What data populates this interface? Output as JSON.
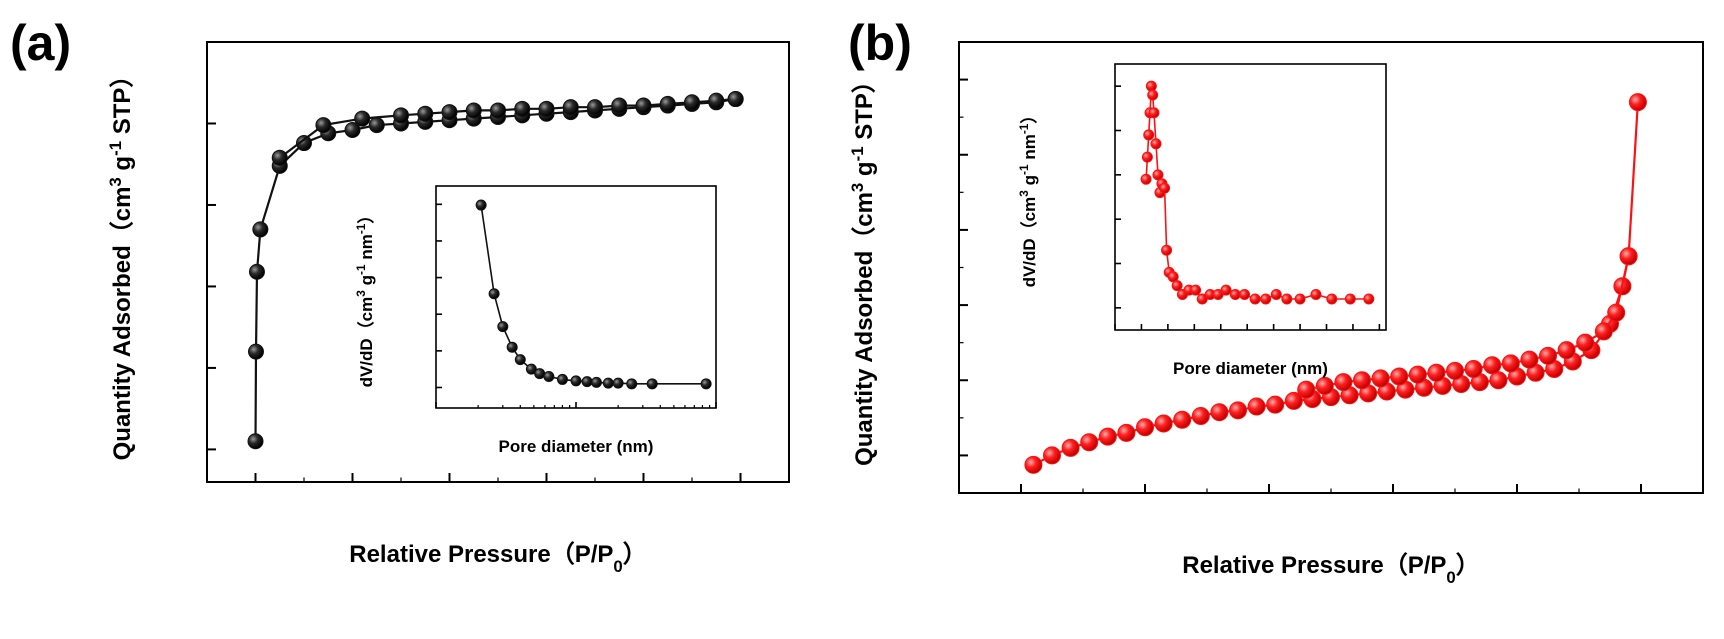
{
  "panel_labels": [
    "(a)",
    "(b)"
  ],
  "colors": {
    "panel_a": "#111111",
    "panel_b": "#ff1111"
  },
  "chart_data": [
    {
      "type": "line",
      "panel": "(a)",
      "xlabel": "Relative Pressure（P/P0）",
      "ylabel": "Quantity Adsorbed（cm3 g-1 STP）",
      "xlim": [
        -0.1,
        1.1
      ],
      "ylim": [
        30,
        300
      ],
      "xticks": [
        "0.0",
        "0.2",
        "0.4",
        "0.6",
        "0.8",
        "1.0"
      ],
      "yticks": [
        "50",
        "100",
        "150",
        "200",
        "250",
        "300"
      ],
      "series": [
        {
          "values": [
            [
              0.0,
              55
            ],
            [
              0.001,
              110
            ],
            [
              0.003,
              159
            ],
            [
              0.01,
              185
            ],
            [
              0.05,
              224
            ],
            [
              0.1,
              238
            ],
            [
              0.15,
              244
            ],
            [
              0.2,
              246
            ],
            [
              0.25,
              249
            ],
            [
              0.3,
              250
            ],
            [
              0.35,
              251
            ],
            [
              0.4,
              252
            ],
            [
              0.45,
              253
            ],
            [
              0.5,
              254
            ],
            [
              0.55,
              255
            ],
            [
              0.6,
              256
            ],
            [
              0.65,
              257
            ],
            [
              0.7,
              258
            ],
            [
              0.75,
              259
            ],
            [
              0.8,
              260
            ],
            [
              0.85,
              261
            ],
            [
              0.9,
              262
            ],
            [
              0.95,
              263
            ],
            [
              0.99,
              265
            ]
          ]
        },
        {
          "values": [
            [
              0.99,
              265
            ],
            [
              0.95,
              264
            ],
            [
              0.9,
              263
            ],
            [
              0.85,
              262
            ],
            [
              0.8,
              261
            ],
            [
              0.75,
              261
            ],
            [
              0.7,
              260
            ],
            [
              0.65,
              260
            ],
            [
              0.6,
              259
            ],
            [
              0.55,
              259
            ],
            [
              0.5,
              258
            ],
            [
              0.45,
              258
            ],
            [
              0.4,
              257
            ],
            [
              0.35,
              256
            ],
            [
              0.3,
              255
            ],
            [
              0.22,
              253
            ],
            [
              0.14,
              249
            ],
            [
              0.05,
              229
            ]
          ]
        }
      ],
      "inset": {
        "type": "line",
        "xlabel": "Pore diameter (nm)",
        "ylabel": "dV/dD（cm3 g-1 nm-1）",
        "xscale": "log",
        "xlim": [
          1,
          100
        ],
        "ylim": [
          -0.028,
          0.275
        ],
        "xticks": [
          "1",
          "10",
          "100"
        ],
        "yticks": [
          "0.00",
          "0.05",
          "0.10",
          "0.15",
          "0.20",
          "0.25"
        ],
        "x": [
          2.1,
          2.6,
          3.0,
          3.5,
          4.0,
          4.8,
          5.5,
          6.4,
          8.0,
          10,
          12,
          14,
          17,
          20,
          25,
          35,
          85
        ],
        "y": [
          0.249,
          0.128,
          0.083,
          0.055,
          0.038,
          0.025,
          0.019,
          0.015,
          0.011,
          0.009,
          0.008,
          0.007,
          0.006,
          0.006,
          0.005,
          0.005,
          0.005
        ]
      }
    },
    {
      "type": "line",
      "panel": "(b)",
      "xlabel": "Relative Pressure（P/P0）",
      "ylabel": "Quantity Adsorbed（cm3 g-1 STP）",
      "xlim": [
        -0.1,
        1.1
      ],
      "ylim": [
        10,
        130
      ],
      "xticks": [
        "0.0",
        "0.2",
        "0.4",
        "0.6",
        "0.8",
        "1.0"
      ],
      "yticks": [
        "20",
        "40",
        "60",
        "80",
        "100",
        "120"
      ],
      "series": [
        {
          "values": [
            [
              0.02,
              17.5
            ],
            [
              0.05,
              20
            ],
            [
              0.08,
              22
            ],
            [
              0.11,
              23.5
            ],
            [
              0.14,
              25
            ],
            [
              0.17,
              26
            ],
            [
              0.2,
              27.5
            ],
            [
              0.23,
              28.5
            ],
            [
              0.26,
              29.5
            ],
            [
              0.29,
              30.5
            ],
            [
              0.32,
              31.5
            ],
            [
              0.35,
              32
            ],
            [
              0.38,
              33
            ],
            [
              0.41,
              33.5
            ],
            [
              0.44,
              34.5
            ],
            [
              0.47,
              35
            ],
            [
              0.5,
              35.5
            ],
            [
              0.53,
              36
            ],
            [
              0.56,
              36.5
            ],
            [
              0.59,
              37
            ],
            [
              0.62,
              37.5
            ],
            [
              0.65,
              38
            ],
            [
              0.68,
              38.5
            ],
            [
              0.71,
              39
            ],
            [
              0.74,
              39.5
            ],
            [
              0.77,
              40
            ],
            [
              0.8,
              41
            ],
            [
              0.83,
              42
            ],
            [
              0.86,
              43
            ],
            [
              0.89,
              45
            ],
            [
              0.92,
              48
            ],
            [
              0.95,
              55
            ],
            [
              0.97,
              65
            ],
            [
              0.98,
              73
            ],
            [
              0.995,
              114
            ]
          ]
        },
        {
          "values": [
            [
              0.98,
              73
            ],
            [
              0.96,
              58
            ],
            [
              0.94,
              53
            ],
            [
              0.91,
              50
            ],
            [
              0.88,
              48
            ],
            [
              0.85,
              46.5
            ],
            [
              0.82,
              45.5
            ],
            [
              0.79,
              44.5
            ],
            [
              0.76,
              44
            ],
            [
              0.73,
              43
            ],
            [
              0.7,
              42.5
            ],
            [
              0.67,
              42
            ],
            [
              0.64,
              41.5
            ],
            [
              0.61,
              41
            ],
            [
              0.58,
              40.5
            ],
            [
              0.55,
              40
            ],
            [
              0.52,
              39.5
            ],
            [
              0.49,
              38.5
            ],
            [
              0.46,
              37.5
            ]
          ]
        }
      ],
      "inset": {
        "type": "line",
        "xlabel": "Pore diameter (nm)",
        "ylabel": "dV/dD（cm3 g-1 nm-1）",
        "xlim": [
          -2,
          18.5
        ],
        "ylim": [
          -0.005,
          0.055
        ],
        "xticks": [
          "-2",
          "0",
          "2",
          "4",
          "6",
          "8",
          "10",
          "12",
          "14",
          "16",
          "18"
        ],
        "yticks": [
          "0.00",
          "0.01",
          "0.02",
          "0.03",
          "0.04",
          "0.05"
        ],
        "x": [
          0.35,
          0.45,
          0.55,
          0.65,
          0.75,
          0.85,
          0.95,
          1.1,
          1.25,
          1.4,
          1.55,
          1.75,
          1.9,
          2.1,
          2.4,
          2.7,
          3.1,
          3.6,
          4.1,
          4.6,
          5.2,
          5.8,
          6.4,
          7.1,
          7.8,
          8.6,
          9.4,
          10.2,
          11.0,
          12.0,
          13.2,
          14.4,
          15.8,
          17.2
        ],
        "y": [
          0.029,
          0.034,
          0.039,
          0.044,
          0.05,
          0.048,
          0.044,
          0.037,
          0.03,
          0.026,
          0.028,
          0.027,
          0.013,
          0.008,
          0.007,
          0.005,
          0.003,
          0.004,
          0.004,
          0.002,
          0.003,
          0.003,
          0.004,
          0.003,
          0.003,
          0.002,
          0.002,
          0.003,
          0.002,
          0.002,
          0.003,
          0.002,
          0.002,
          0.002
        ]
      }
    }
  ]
}
